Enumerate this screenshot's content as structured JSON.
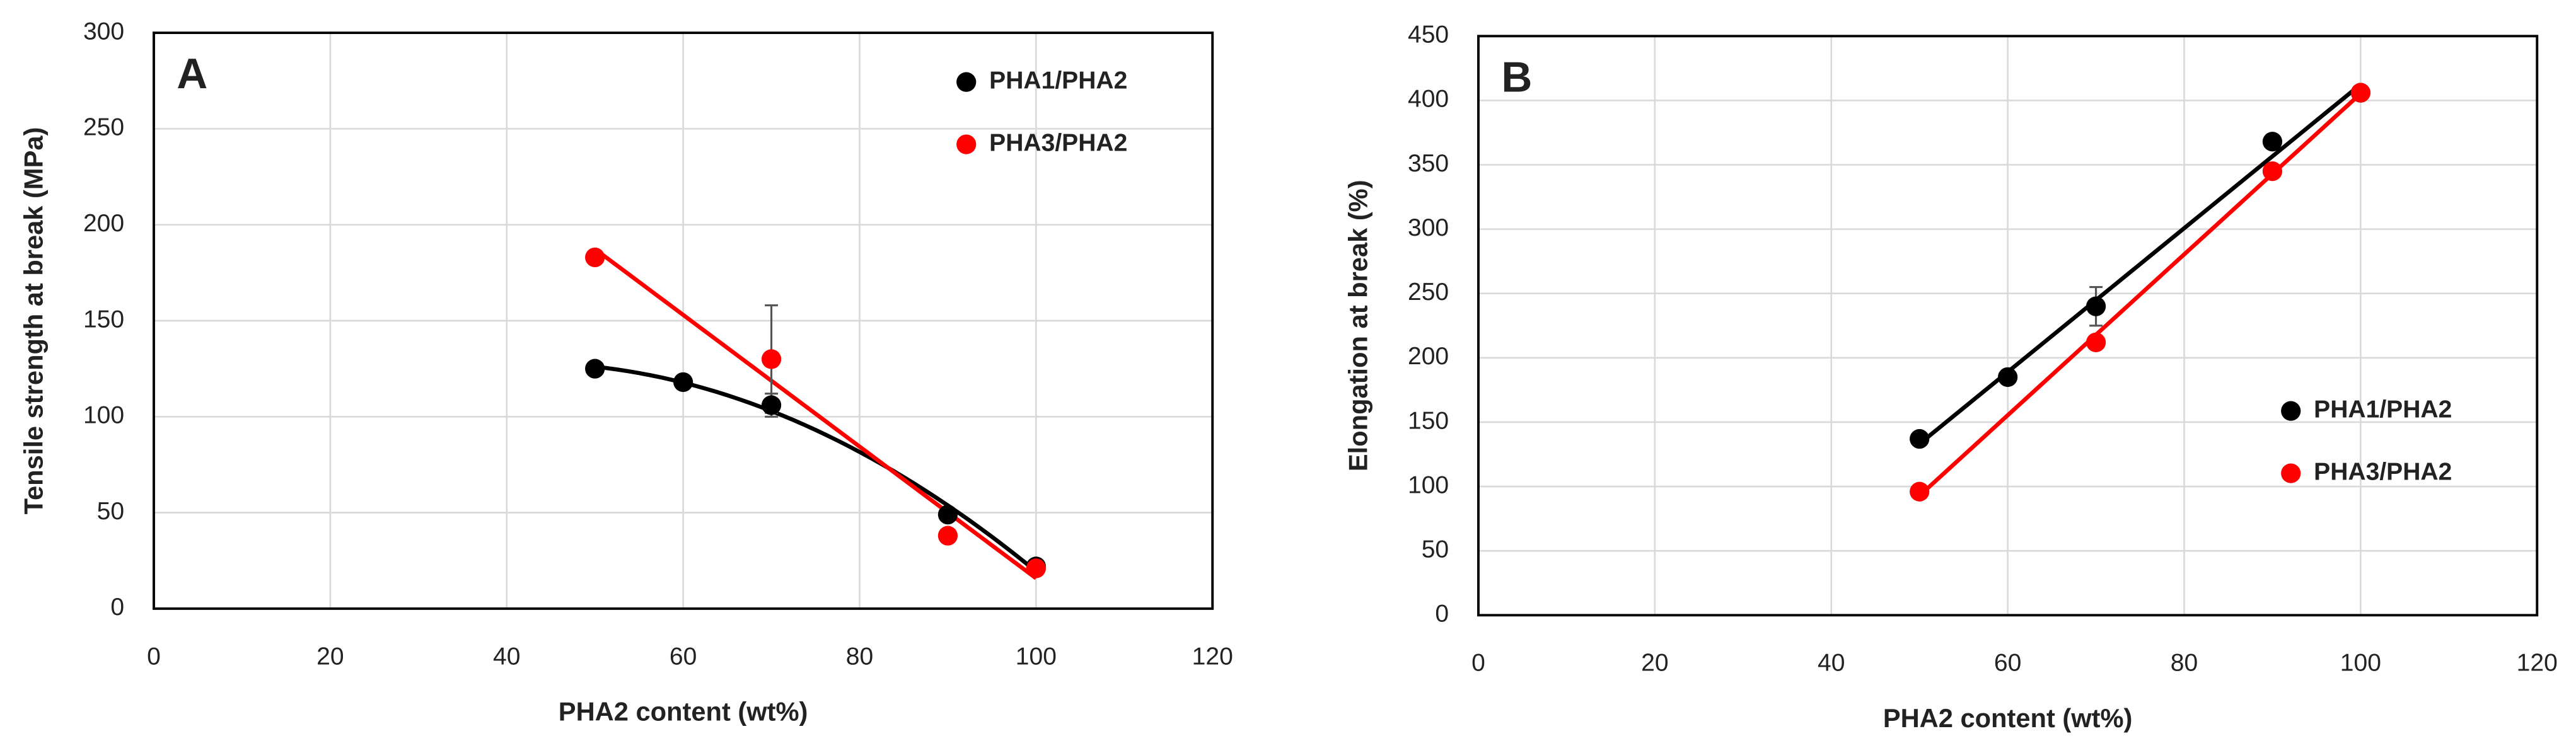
{
  "chart_data": [
    {
      "type": "scatter",
      "annotation": "A",
      "xlabel": "PHA2 content (wt%)",
      "ylabel": "Tensile strength at break (MPa)",
      "xlim": [
        0,
        120
      ],
      "xticks": [
        0,
        20,
        40,
        60,
        80,
        100,
        120
      ],
      "ylim": [
        0,
        300
      ],
      "yticks": [
        0,
        50,
        100,
        150,
        200,
        250,
        300
      ],
      "grid": true,
      "legend": "upper right",
      "series": [
        {
          "name": "PHA1/PHA2",
          "color": "#000000",
          "x": [
            50,
            60,
            70,
            90,
            100
          ],
          "values": [
            125,
            118,
            106,
            49,
            22
          ],
          "errors": [
            null,
            null,
            6,
            null,
            null
          ],
          "trendline": "polynomial"
        },
        {
          "name": "PHA3/PHA2",
          "color": "#ff0000",
          "x": [
            50,
            70,
            90,
            100
          ],
          "values": [
            183,
            130,
            38,
            21
          ],
          "errors": [
            null,
            28,
            null,
            null
          ],
          "trendline": "linear"
        }
      ]
    },
    {
      "type": "scatter",
      "annotation": "B",
      "xlabel": "PHA2 content (wt%)",
      "ylabel": "Elongation at break (%)",
      "xlim": [
        0,
        120
      ],
      "xticks": [
        0,
        20,
        40,
        60,
        80,
        100,
        120
      ],
      "ylim": [
        0,
        450
      ],
      "yticks": [
        0,
        50,
        100,
        150,
        200,
        250,
        300,
        350,
        400,
        450
      ],
      "grid": true,
      "legend": "center right",
      "series": [
        {
          "name": "PHA1/PHA2",
          "color": "#000000",
          "x": [
            50,
            60,
            70,
            90,
            100
          ],
          "values": [
            137,
            185,
            240,
            368,
            406
          ],
          "errors": [
            null,
            null,
            15,
            null,
            null
          ],
          "trendline": "linear"
        },
        {
          "name": "PHA3/PHA2",
          "color": "#ff0000",
          "x": [
            50,
            70,
            90,
            100
          ],
          "values": [
            96,
            212,
            345,
            406
          ],
          "errors": [
            null,
            null,
            null,
            null
          ],
          "trendline": "linear"
        }
      ]
    }
  ]
}
